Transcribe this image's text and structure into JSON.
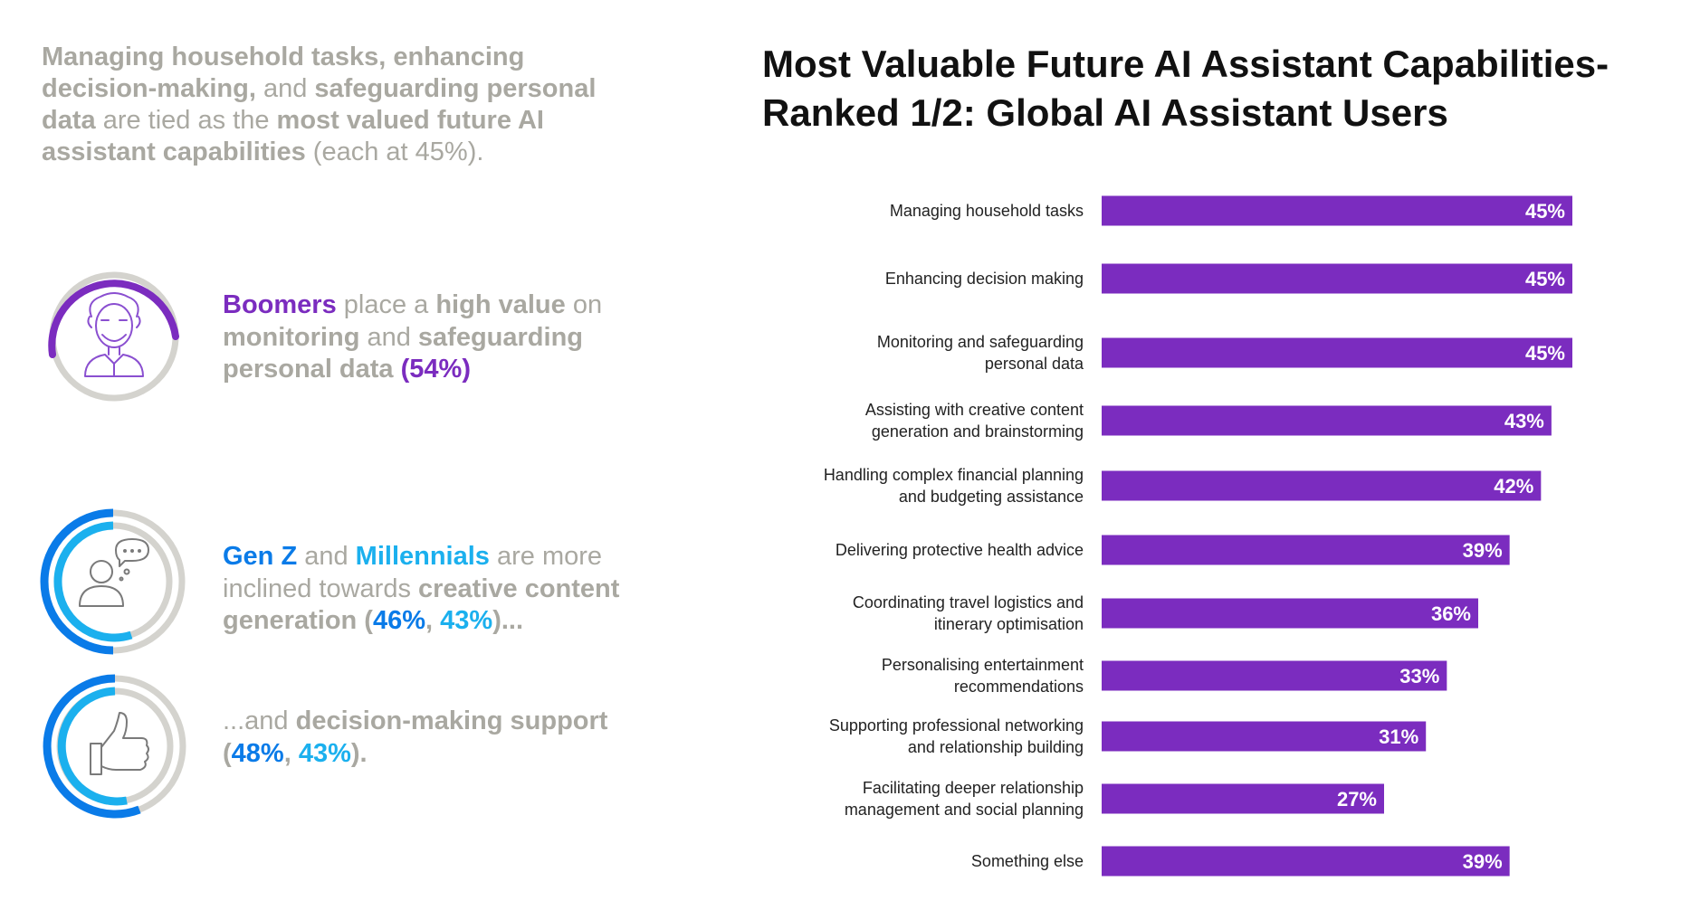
{
  "intro": {
    "p1": "Managing household tasks, enhancing decision-making,",
    "p2": " and ",
    "p3": "safeguarding personal data",
    "p4": " are tied as the ",
    "p5": "most valued future AI assistant capabilities",
    "p6": " (each at 45%)."
  },
  "boomers": {
    "icon": "elderly-person-icon",
    "t1": "Boomers",
    "t2": " place a ",
    "t3": "high value",
    "t4": " on ",
    "t5": "monitoring",
    "t6": " and ",
    "t7": "safeguarding personal data",
    "t8": " (",
    "t9": "54%",
    "t10": ")"
  },
  "genz": {
    "icon": "person-speech-bubble-icon",
    "t1": "Gen Z",
    "t2": " and ",
    "t3": "Millennials",
    "t4": " are more inclined towards ",
    "t5": "creative content generation",
    "t6": " (",
    "t7": "46%",
    "t8": ", ",
    "t9": "43%",
    "t10": ")..."
  },
  "decision": {
    "icon": "thumbs-up-icon",
    "t1": "...and ",
    "t2": "decision-making support",
    "t3": " (",
    "t4": "48%",
    "t5": ", ",
    "t6": "43%",
    "t7": ")."
  },
  "colors": {
    "bar": "#7b2cbf",
    "boomers": "#7b2cbf",
    "genz": "#0a7be8",
    "millennials": "#1bb0ee",
    "grey": "#a9a8a1"
  },
  "chart_data": {
    "type": "bar",
    "orientation": "horizontal",
    "title": "Most Valuable Future AI Assistant Capabilities-Ranked 1/2: Global AI Assistant Users",
    "title_lines": [
      "Most Valuable Future AI Assistant Capabilities-",
      "Ranked 1/2: Global AI Assistant Users"
    ],
    "categories": [
      [
        "Managing household tasks"
      ],
      [
        "Enhancing decision making"
      ],
      [
        "Monitoring and safeguarding",
        "personal data"
      ],
      [
        "Assisting with creative content",
        "generation and brainstorming"
      ],
      [
        "Handling complex financial planning",
        "and budgeting assistance"
      ],
      [
        "Delivering protective health advice"
      ],
      [
        "Coordinating travel logistics and",
        "itinerary optimisation"
      ],
      [
        "Personalising entertainment",
        "recommendations"
      ],
      [
        "Supporting professional networking",
        "and relationship building"
      ],
      [
        "Facilitating deeper relationship",
        "management and social planning"
      ],
      [
        "Something else"
      ]
    ],
    "values": [
      45,
      45,
      45,
      43,
      42,
      39,
      36,
      33,
      31,
      27,
      39
    ],
    "value_labels": [
      "45%",
      "45%",
      "45%",
      "43%",
      "42%",
      "39%",
      "36%",
      "33%",
      "31%",
      "27%",
      "39%"
    ],
    "unit": "%",
    "xlim": [
      0,
      45
    ],
    "grid": false,
    "legend": "none"
  }
}
